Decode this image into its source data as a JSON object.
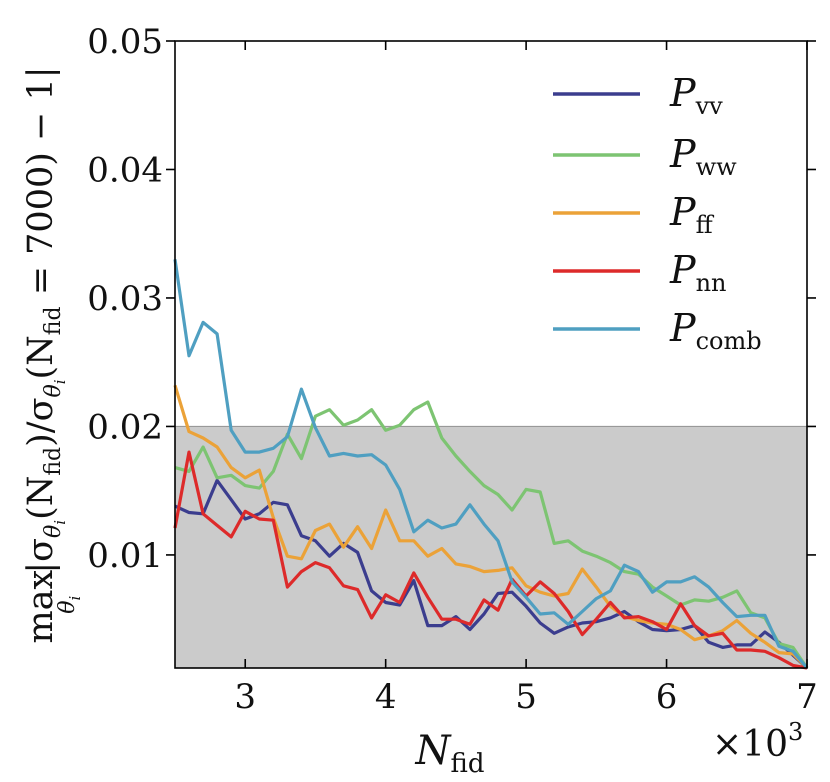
{
  "chart_data": {
    "type": "line",
    "xlabel": {
      "main": "N",
      "sub": "fid"
    },
    "x_multiplier": {
      "base": "×10",
      "exp": "3"
    },
    "ylabel": {
      "prefix": "max",
      "prefix_sub": "θ",
      "prefix_sub_sub": "i",
      "expr": "|σ",
      "expr_sub": "θ",
      "expr_sub_sub": "i",
      "expr2": "(N",
      "expr2_sub": "fid",
      "expr3": ")/σ",
      "expr3_sub": "θ",
      "expr3_sub_sub": "i",
      "expr4": "(N",
      "expr4_sub": "fid",
      "expr5": " = 7000) − 1|"
    },
    "xlim": [
      2.5,
      7.0
    ],
    "ylim": [
      0.0012,
      0.05
    ],
    "xticks": [
      3,
      4,
      5,
      6,
      7
    ],
    "xtick_labels": [
      "3",
      "4",
      "5",
      "6",
      "7"
    ],
    "yticks": [
      0.01,
      0.02,
      0.03,
      0.04,
      0.05
    ],
    "ytick_labels": [
      "0.01",
      "0.02",
      "0.03",
      "0.04",
      "0.05"
    ],
    "threshold_band": {
      "from": 0.0012,
      "to": 0.02,
      "color": "#cbcbcb",
      "line_color": "#999999"
    },
    "legend_placement": "top-right",
    "x": [
      2.5,
      2.6,
      2.7,
      2.8,
      2.9,
      3.0,
      3.1,
      3.2,
      3.3,
      3.4,
      3.5,
      3.6,
      3.7,
      3.8,
      3.9,
      4.0,
      4.1,
      4.2,
      4.3,
      4.4,
      4.5,
      4.6,
      4.7,
      4.8,
      4.9,
      5.0,
      5.1,
      5.2,
      5.3,
      5.4,
      5.5,
      5.6,
      5.7,
      5.8,
      5.9,
      6.0,
      6.1,
      6.2,
      6.3,
      6.4,
      6.5,
      6.6,
      6.7,
      6.8,
      6.9,
      7.0
    ],
    "series": [
      {
        "name": "P",
        "sub": "vv",
        "color": "#3b3d8e",
        "values": [
          0.0138,
          0.0133,
          0.0132,
          0.0158,
          0.0143,
          0.0128,
          0.0132,
          0.0141,
          0.0139,
          0.0115,
          0.0111,
          0.0099,
          0.0109,
          0.0102,
          0.0072,
          0.0063,
          0.0061,
          0.008,
          0.0045,
          0.0045,
          0.0052,
          0.0042,
          0.0054,
          0.007,
          0.0071,
          0.006,
          0.0047,
          0.0039,
          0.0044,
          0.0047,
          0.0048,
          0.0051,
          0.0056,
          0.0048,
          0.0042,
          0.0041,
          0.0042,
          0.0045,
          0.0032,
          0.0028,
          0.003,
          0.003,
          0.004,
          0.0032,
          0.0022,
          0.0012
        ]
      },
      {
        "name": "P",
        "sub": "ww",
        "color": "#7dc472",
        "values": [
          0.0168,
          0.0165,
          0.0184,
          0.016,
          0.0162,
          0.0154,
          0.0152,
          0.0165,
          0.0194,
          0.0175,
          0.0208,
          0.0213,
          0.0201,
          0.0205,
          0.0213,
          0.0197,
          0.0201,
          0.0213,
          0.0219,
          0.0191,
          0.0177,
          0.0165,
          0.0154,
          0.0147,
          0.0135,
          0.0151,
          0.0149,
          0.0109,
          0.0111,
          0.0103,
          0.0099,
          0.0094,
          0.0087,
          0.0085,
          0.0075,
          0.0068,
          0.0061,
          0.0065,
          0.0064,
          0.0067,
          0.0072,
          0.0055,
          0.0051,
          0.0031,
          0.0028,
          0.0012
        ]
      },
      {
        "name": "P",
        "sub": "ff",
        "color": "#eba238",
        "values": [
          0.0232,
          0.0196,
          0.0191,
          0.0184,
          0.0168,
          0.016,
          0.0166,
          0.0129,
          0.0099,
          0.0097,
          0.0119,
          0.0124,
          0.0106,
          0.0122,
          0.0105,
          0.0135,
          0.0111,
          0.0111,
          0.0099,
          0.0105,
          0.0093,
          0.0091,
          0.0087,
          0.0088,
          0.009,
          0.0076,
          0.0071,
          0.0068,
          0.007,
          0.0089,
          0.0075,
          0.006,
          0.0052,
          0.0049,
          0.0047,
          0.0046,
          0.0042,
          0.0034,
          0.0037,
          0.0041,
          0.0049,
          0.0039,
          0.0032,
          0.0024,
          0.0023,
          0.0012
        ]
      },
      {
        "name": "P",
        "sub": "nn",
        "color": "#dd2a2a",
        "values": [
          0.0121,
          0.018,
          0.0132,
          0.0123,
          0.0114,
          0.0134,
          0.0128,
          0.0127,
          0.0075,
          0.0087,
          0.0094,
          0.009,
          0.0076,
          0.0073,
          0.0051,
          0.0069,
          0.0063,
          0.0086,
          0.0067,
          0.005,
          0.005,
          0.0046,
          0.0065,
          0.0057,
          0.0081,
          0.0068,
          0.0079,
          0.007,
          0.0056,
          0.0038,
          0.005,
          0.0063,
          0.0051,
          0.0052,
          0.0048,
          0.0042,
          0.0062,
          0.0045,
          0.0037,
          0.0039,
          0.0026,
          0.0026,
          0.0025,
          0.002,
          0.0014,
          0.0012
        ]
      },
      {
        "name": "P",
        "sub": "comb",
        "color": "#4f9fc1",
        "values": [
          0.033,
          0.0255,
          0.0281,
          0.0272,
          0.0197,
          0.018,
          0.018,
          0.0183,
          0.0192,
          0.0229,
          0.0199,
          0.0177,
          0.0179,
          0.0177,
          0.0178,
          0.017,
          0.0151,
          0.0118,
          0.0127,
          0.0121,
          0.0124,
          0.0139,
          0.0124,
          0.0111,
          0.0079,
          0.0067,
          0.0054,
          0.0055,
          0.0046,
          0.0056,
          0.0066,
          0.0072,
          0.0092,
          0.0087,
          0.0071,
          0.0079,
          0.0079,
          0.0083,
          0.0075,
          0.0063,
          0.0052,
          0.0053,
          0.0053,
          0.0029,
          0.0025,
          0.0012
        ]
      }
    ]
  }
}
